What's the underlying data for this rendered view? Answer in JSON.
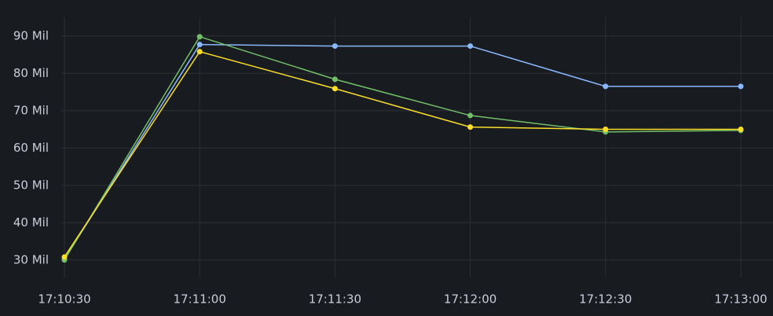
{
  "chart_data": {
    "type": "line",
    "categories": [
      "17:10:30",
      "17:11:00",
      "17:11:30",
      "17:12:00",
      "17:12:30",
      "17:13:00"
    ],
    "series": [
      {
        "color": "#8ab8ff",
        "values": [
          30200000,
          87700000,
          87300000,
          87300000,
          76500000,
          76500000
        ]
      },
      {
        "color": "#73bf69",
        "values": [
          30000000,
          89800000,
          78400000,
          68700000,
          64300000,
          64700000
        ]
      },
      {
        "color": "#fade2a",
        "values": [
          30800000,
          85800000,
          75900000,
          65600000,
          65000000,
          65000000
        ]
      }
    ],
    "ylim": [
      27000000,
      95000000
    ],
    "yticks": [
      {
        "value": 30000000,
        "label": "30 Mil"
      },
      {
        "value": 40000000,
        "label": "40 Mil"
      },
      {
        "value": 50000000,
        "label": "50 Mil"
      },
      {
        "value": 60000000,
        "label": "60 Mil"
      },
      {
        "value": 70000000,
        "label": "70 Mil"
      },
      {
        "value": 80000000,
        "label": "80 Mil"
      },
      {
        "value": 90000000,
        "label": "90 Mil"
      }
    ],
    "grid": true
  }
}
